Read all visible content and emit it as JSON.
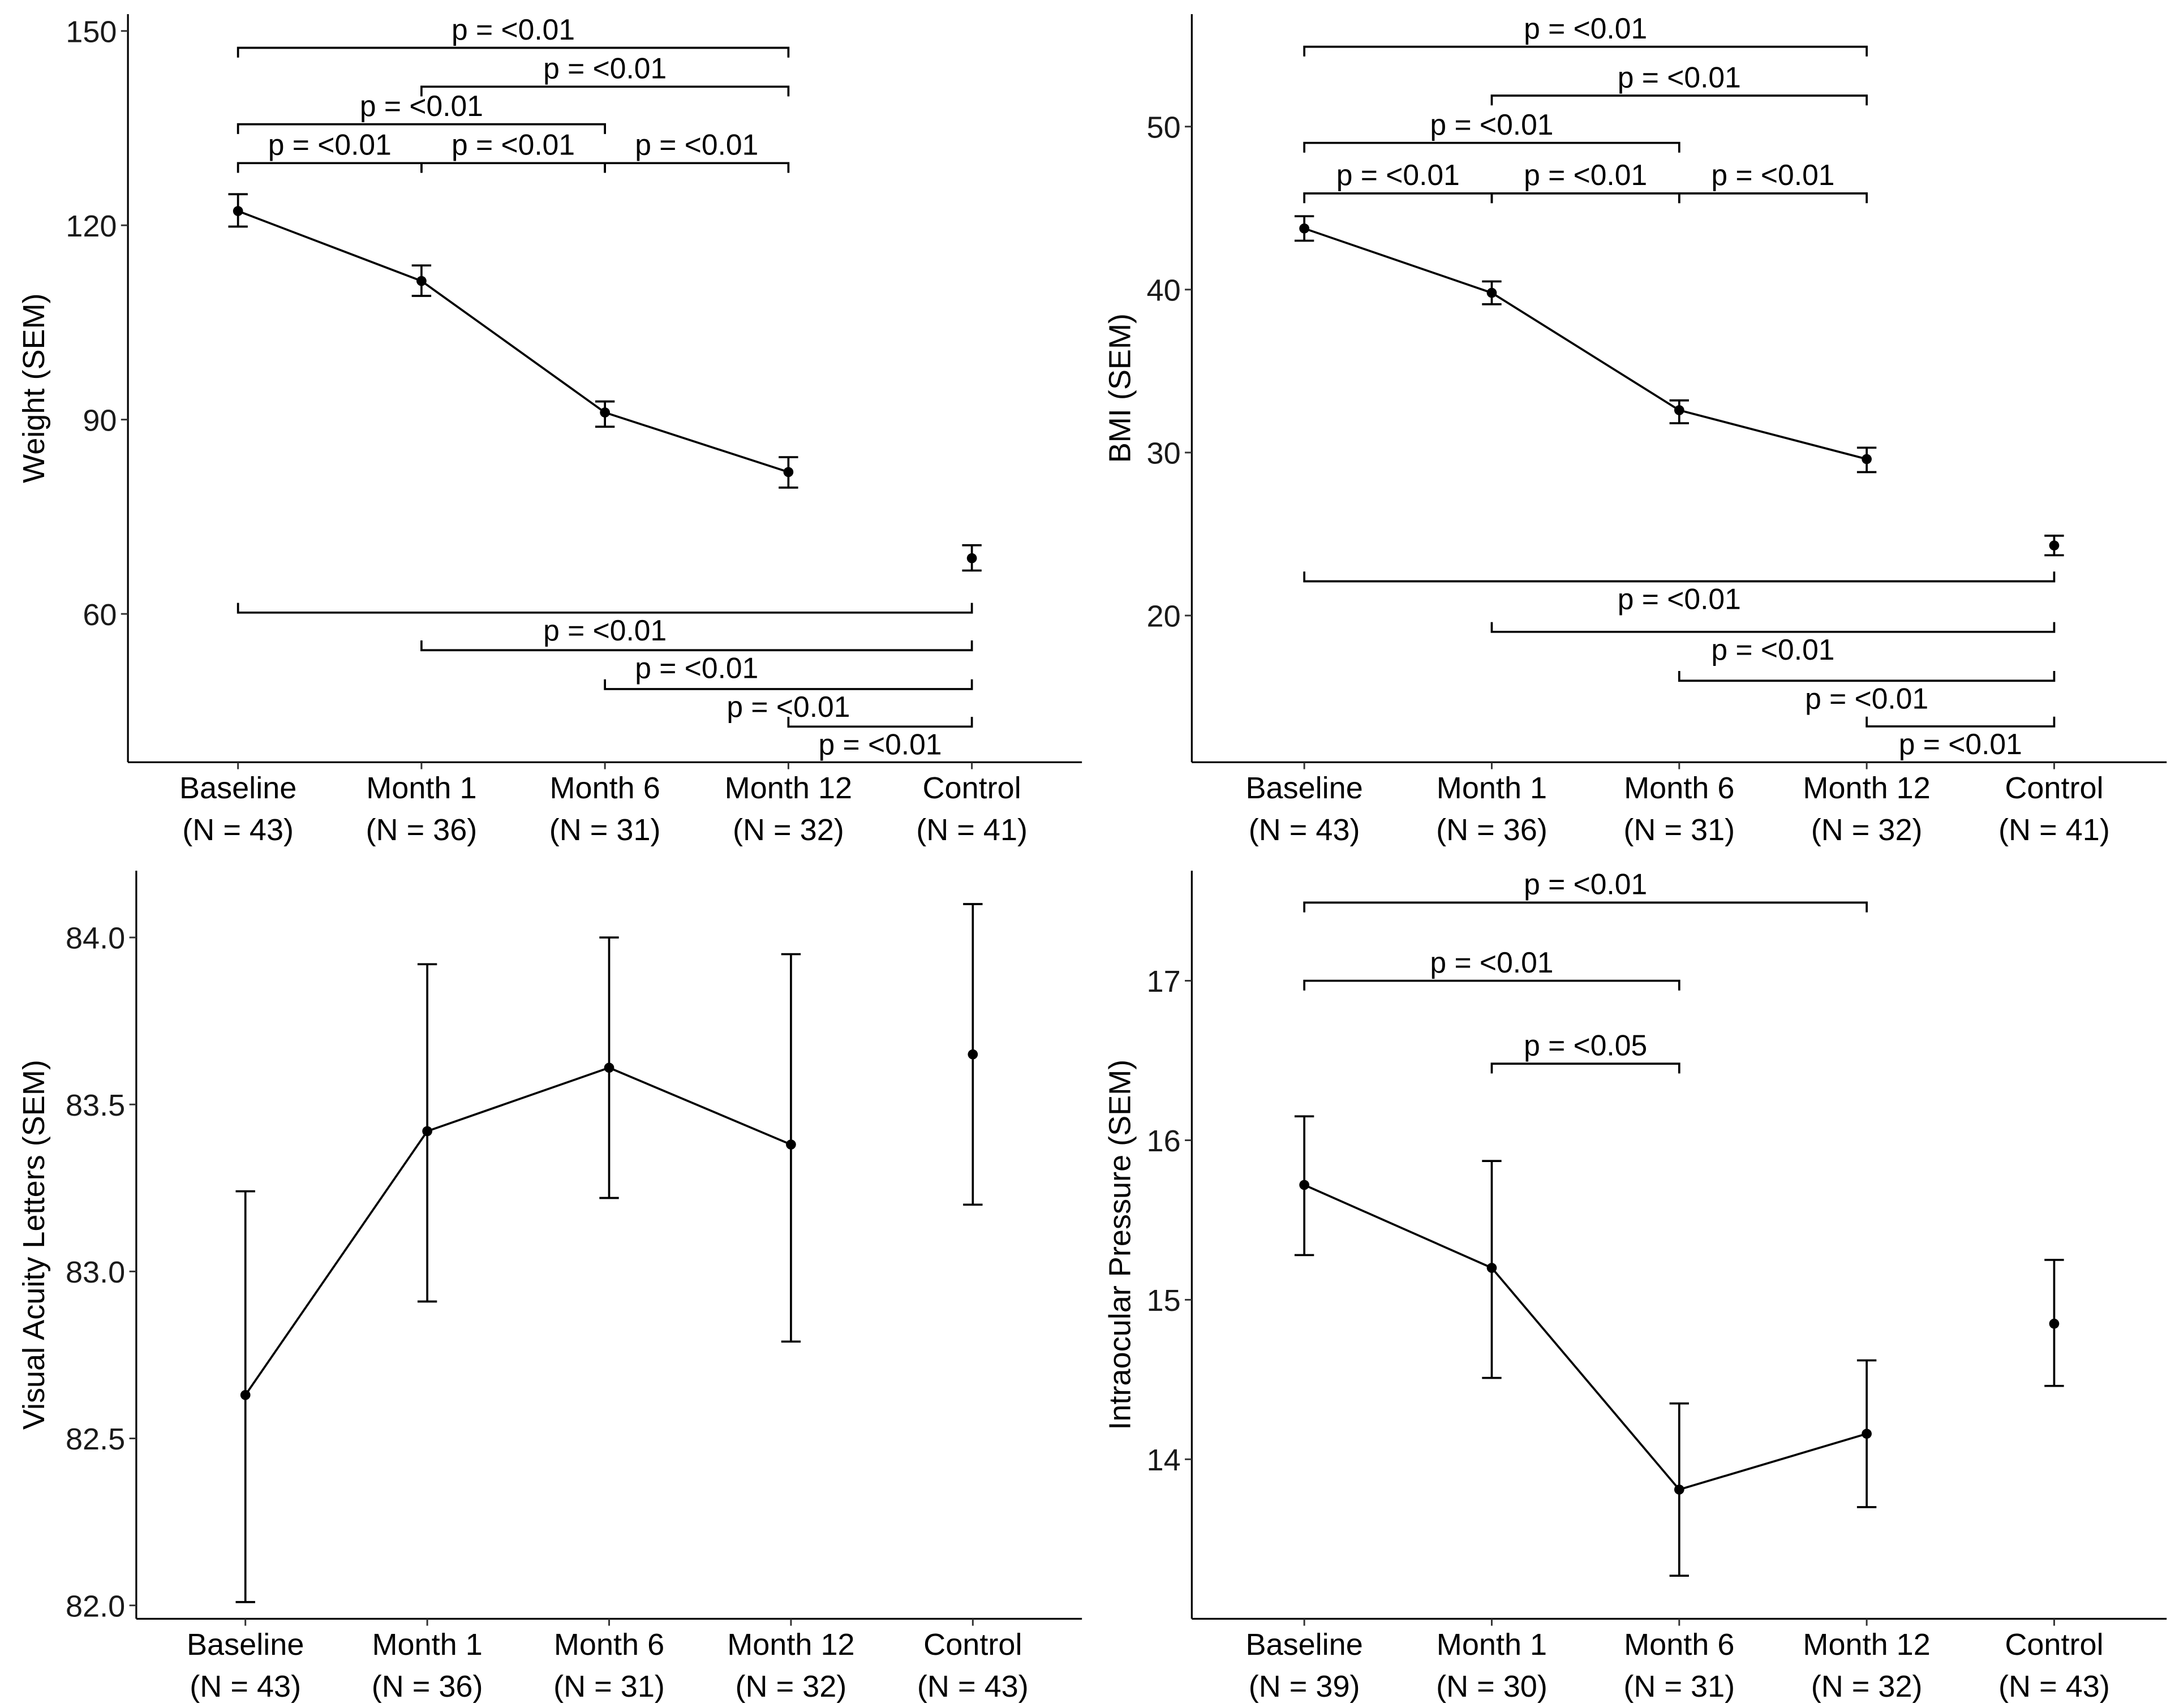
{
  "chart_data": [
    {
      "type": "line",
      "id": "weight",
      "ylabel": "Weight (SEM)",
      "categories": [
        [
          "Baseline",
          "(N = 43)"
        ],
        [
          "Month 1",
          "(N = 36)"
        ],
        [
          "Month 6",
          "(N = 31)"
        ],
        [
          "Month 12",
          "(N = 32)"
        ],
        [
          "Control",
          "(N = 41)"
        ]
      ],
      "values": [
        122.2,
        111.4,
        91.1,
        81.9,
        68.6
      ],
      "err_low": [
        119.8,
        109.1,
        88.9,
        79.5,
        66.7
      ],
      "err_high": [
        124.8,
        113.8,
        92.8,
        84.2,
        70.6
      ],
      "connected_points": 4,
      "ylim": [
        37.1,
        152.6
      ],
      "yticks": [
        {
          "v": 60,
          "label": "60"
        },
        {
          "v": 90,
          "label": "90"
        },
        {
          "v": 120,
          "label": "120"
        },
        {
          "v": 150,
          "label": "150"
        }
      ],
      "brackets": [
        {
          "from": 0,
          "to": 3,
          "y": 147.4,
          "label": "p = <0.01",
          "side": "top"
        },
        {
          "from": 1,
          "to": 3,
          "y": 141.4,
          "label": "p = <0.01",
          "side": "top"
        },
        {
          "from": 0,
          "to": 2,
          "y": 135.6,
          "label": "p = <0.01",
          "side": "top"
        },
        {
          "from": 0,
          "to": 1,
          "y": 129.6,
          "label": "p = <0.01",
          "side": "top"
        },
        {
          "from": 1,
          "to": 2,
          "y": 129.6,
          "label": "p = <0.01",
          "side": "top"
        },
        {
          "from": 2,
          "to": 3,
          "y": 129.6,
          "label": "p = <0.01",
          "side": "top"
        },
        {
          "from": 0,
          "to": 4,
          "y": 60.2,
          "label": "p = <0.01",
          "side": "bottom"
        },
        {
          "from": 1,
          "to": 4,
          "y": 54.4,
          "label": "p = <0.01",
          "side": "bottom"
        },
        {
          "from": 2,
          "to": 4,
          "y": 48.4,
          "label": "p = <0.01",
          "side": "bottom"
        },
        {
          "from": 3,
          "to": 4,
          "y": 42.6,
          "label": "p = <0.01",
          "side": "bottom"
        }
      ]
    },
    {
      "type": "line",
      "id": "bmi",
      "ylabel": "BMI (SEM)",
      "categories": [
        [
          "Baseline",
          "(N = 43)"
        ],
        [
          "Month 1",
          "(N = 36)"
        ],
        [
          "Month 6",
          "(N = 31)"
        ],
        [
          "Month 12",
          "(N = 32)"
        ],
        [
          "Control",
          "(N = 41)"
        ]
      ],
      "values": [
        43.75,
        39.8,
        32.6,
        29.6,
        24.3
      ],
      "err_low": [
        43.0,
        39.1,
        31.8,
        28.8,
        23.7
      ],
      "err_high": [
        44.5,
        40.5,
        33.2,
        30.3,
        24.9
      ],
      "connected_points": 4,
      "ylim": [
        11.0,
        56.9
      ],
      "yticks": [
        {
          "v": 20,
          "label": "20"
        },
        {
          "v": 30,
          "label": "30"
        },
        {
          "v": 40,
          "label": "40"
        },
        {
          "v": 50,
          "label": "50"
        }
      ],
      "brackets": [
        {
          "from": 0,
          "to": 3,
          "y": 54.9,
          "label": "p = <0.01",
          "side": "top"
        },
        {
          "from": 1,
          "to": 3,
          "y": 51.9,
          "label": "p = <0.01",
          "side": "top"
        },
        {
          "from": 0,
          "to": 2,
          "y": 49.0,
          "label": "p = <0.01",
          "side": "top"
        },
        {
          "from": 0,
          "to": 1,
          "y": 45.9,
          "label": "p = <0.01",
          "side": "top"
        },
        {
          "from": 1,
          "to": 2,
          "y": 45.9,
          "label": "p = <0.01",
          "side": "top"
        },
        {
          "from": 2,
          "to": 3,
          "y": 45.9,
          "label": "p = <0.01",
          "side": "top"
        },
        {
          "from": 0,
          "to": 4,
          "y": 22.1,
          "label": "p = <0.01",
          "side": "bottom"
        },
        {
          "from": 1,
          "to": 4,
          "y": 19.0,
          "label": "p = <0.01",
          "side": "bottom"
        },
        {
          "from": 2,
          "to": 4,
          "y": 16.0,
          "label": "p = <0.01",
          "side": "bottom"
        },
        {
          "from": 3,
          "to": 4,
          "y": 13.2,
          "label": "p = <0.01",
          "side": "bottom"
        }
      ]
    },
    {
      "type": "line",
      "id": "visual-acuity",
      "ylabel": "Visual Acuity Letters (SEM)",
      "categories": [
        [
          "Baseline",
          "(N = 43)"
        ],
        [
          "Month 1",
          "(N = 36)"
        ],
        [
          "Month 6",
          "(N = 31)"
        ],
        [
          "Month 12",
          "(N = 32)"
        ],
        [
          "Control",
          "(N = 43)"
        ]
      ],
      "values": [
        82.63,
        83.42,
        83.61,
        83.38,
        83.65
      ],
      "err_low": [
        82.01,
        82.91,
        83.22,
        82.79,
        83.2
      ],
      "err_high": [
        83.24,
        83.92,
        84.0,
        83.95,
        84.1
      ],
      "connected_points": 4,
      "ylim": [
        81.96,
        84.2
      ],
      "yticks": [
        {
          "v": 82.0,
          "label": "82.0"
        },
        {
          "v": 82.5,
          "label": "82.5"
        },
        {
          "v": 83.0,
          "label": "83.0"
        },
        {
          "v": 83.5,
          "label": "83.5"
        },
        {
          "v": 84.0,
          "label": "84.0"
        }
      ],
      "brackets": []
    },
    {
      "type": "line",
      "id": "intraocular-pressure",
      "ylabel": "Intraocular Pressure (SEM)",
      "categories": [
        [
          "Baseline",
          "(N = 39)"
        ],
        [
          "Month 1",
          "(N = 30)"
        ],
        [
          "Month 6",
          "(N = 31)"
        ],
        [
          "Month 12",
          "(N = 32)"
        ],
        [
          "Control",
          "(N = 43)"
        ]
      ],
      "values": [
        15.72,
        15.2,
        13.81,
        14.16,
        14.85
      ],
      "err_low": [
        15.28,
        14.51,
        13.27,
        13.7,
        14.46
      ],
      "err_high": [
        16.15,
        15.87,
        14.35,
        14.62,
        15.25
      ],
      "connected_points": 4,
      "ylim": [
        13.0,
        17.69
      ],
      "yticks": [
        {
          "v": 14,
          "label": "14"
        },
        {
          "v": 15,
          "label": "15"
        },
        {
          "v": 16,
          "label": "16"
        },
        {
          "v": 17,
          "label": "17"
        }
      ],
      "brackets": [
        {
          "from": 0,
          "to": 3,
          "y": 17.49,
          "label": "p = <0.01",
          "side": "top"
        },
        {
          "from": 0,
          "to": 2,
          "y": 17.0,
          "label": "p = <0.01",
          "side": "top"
        },
        {
          "from": 1,
          "to": 2,
          "y": 16.48,
          "label": "p = <0.05",
          "side": "top"
        }
      ]
    }
  ]
}
